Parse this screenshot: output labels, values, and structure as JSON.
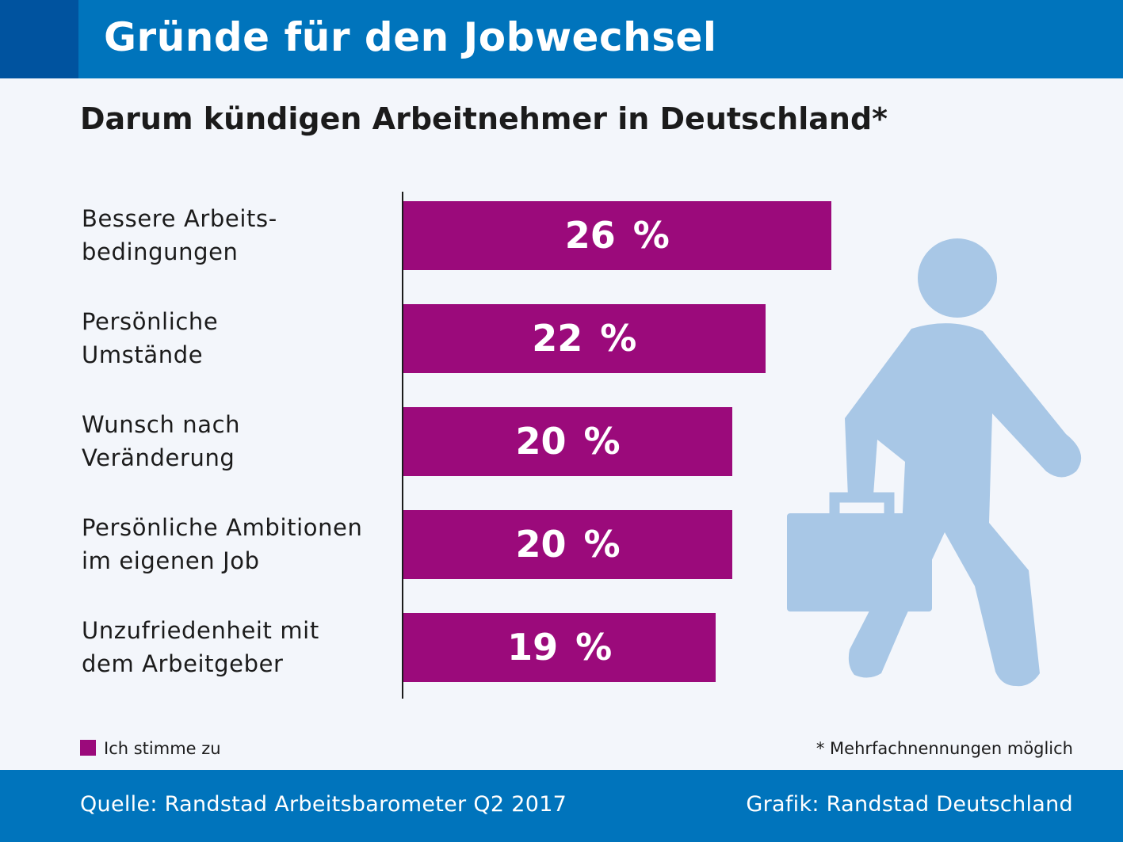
{
  "header": {
    "title": "Gründe für den Jobwechsel"
  },
  "chart_data": {
    "type": "bar",
    "orientation": "horizontal",
    "title": "Gründe für den Jobwechsel",
    "subtitle": "Darum kündigen Arbeitnehmer in Deutschland*",
    "categories": [
      [
        "Bessere Arbeits-",
        "bedingungen"
      ],
      [
        "Persönliche",
        "Umstände"
      ],
      [
        "Wunsch nach",
        "Veränderung"
      ],
      [
        "Persönliche Ambitionen",
        "im eigenen Job"
      ],
      [
        "Unzufriedenheit mit",
        "dem Arbeitgeber"
      ]
    ],
    "series": [
      {
        "name": "Ich stimme zu",
        "values": [
          26,
          22,
          20,
          20,
          19
        ]
      }
    ],
    "value_labels": [
      "26 %",
      "22 %",
      "20 %",
      "20 %",
      "19 %"
    ],
    "unit": "%",
    "xlim": [
      0,
      35
    ],
    "xlabel": "",
    "ylabel": "",
    "grid": false,
    "legend_position": "bottom-left",
    "colors": {
      "bar": "#9b0a7b"
    }
  },
  "legend": {
    "label": "Ich stimme zu"
  },
  "note": "* Mehrfachnennungen möglich",
  "footer": {
    "source": "Quelle: Randstad Arbeitsbarometer Q2 2017",
    "credit": "Grafik: Randstad Deutschland"
  },
  "illustration": {
    "icon": "walking-person-with-briefcase-icon",
    "color": "#a8c7e6"
  },
  "colors": {
    "header_bg": "#0074bc",
    "header_accent": "#00539f",
    "page_bg": "#f3f6fb",
    "footer_bg": "#0074bc"
  }
}
